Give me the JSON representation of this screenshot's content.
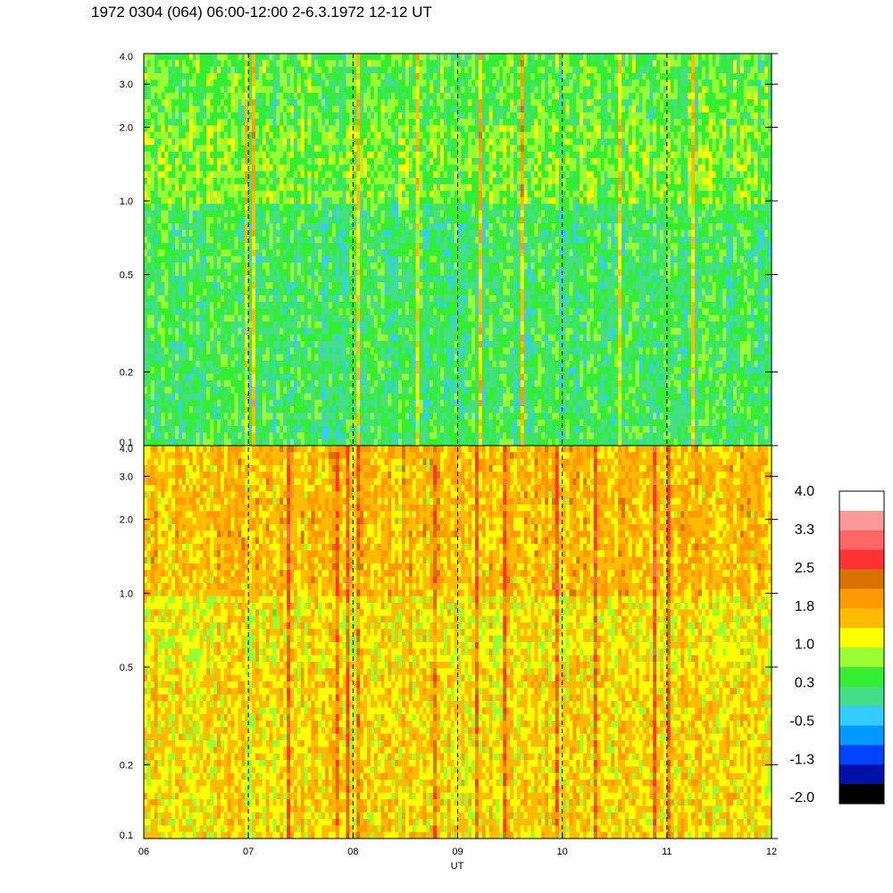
{
  "title": "1972 0304 (064) 06:00-12:00 2-6.3.1972  12-12 UT",
  "chart_data": {
    "type": "heatmap",
    "title": "1972 0304 (064) 06:00-12:00 2-6.3.1972  12-12 UT",
    "xlabel": "UT",
    "x_ticks": [
      "06",
      "07",
      "08",
      "09",
      "10",
      "11",
      "12"
    ],
    "x_range_hours": [
      6,
      12
    ],
    "x_dashed_gridlines_hours": [
      7,
      8,
      9,
      10,
      11
    ],
    "panels": [
      {
        "name": "",
        "y_scale": "log",
        "y_range": [
          0.1,
          4.0
        ],
        "y_ticks": [
          "0.1",
          "0.2",
          "0.5",
          "1.0",
          "2.0",
          "3.0",
          "4.0"
        ],
        "y_tick_values": [
          0.1,
          0.2,
          0.5,
          1.0,
          2.0,
          3.0,
          4.0
        ],
        "dominant_level_by_band": [
          {
            "y_range": [
              0.1,
              0.5
            ],
            "level": 0.3
          },
          {
            "y_range": [
              0.5,
              1.0
            ],
            "level": 0.3
          },
          {
            "y_range": [
              1.0,
              2.0
            ],
            "level": 0.65
          },
          {
            "y_range": [
              2.0,
              4.0
            ],
            "level": 0.5
          }
        ]
      },
      {
        "name": "",
        "y_scale": "log",
        "y_range": [
          0.1,
          4.0
        ],
        "y_ticks": [
          "0.1",
          "0.2",
          "0.5",
          "1.0",
          "2.0",
          "3.0",
          "4.0"
        ],
        "y_tick_values": [
          0.1,
          0.2,
          0.5,
          1.0,
          2.0,
          3.0,
          4.0
        ],
        "dominant_level_by_band": [
          {
            "y_range": [
              0.1,
              0.5
            ],
            "level": 1.4
          },
          {
            "y_range": [
              0.5,
              1.0
            ],
            "level": 1.3
          },
          {
            "y_range": [
              1.0,
              2.0
            ],
            "level": 1.6
          },
          {
            "y_range": [
              2.0,
              4.0
            ],
            "level": 1.6
          }
        ]
      }
    ],
    "colorbar": {
      "labels": [
        "4.0",
        "3.3",
        "2.5",
        "1.8",
        "1.0",
        "0.3",
        "-0.5",
        "-1.3",
        "-2.0"
      ],
      "range": [
        -2.0,
        4.0
      ],
      "colors_top_to_bottom": [
        "#ffffff",
        "#ff9999",
        "#ff6666",
        "#ff3333",
        "#d97000",
        "#ff9900",
        "#ffbb00",
        "#ffff00",
        "#99ff33",
        "#33ee33",
        "#44dd88",
        "#33ccff",
        "#0099ff",
        "#0044ff",
        "#0011aa",
        "#000000"
      ]
    }
  }
}
